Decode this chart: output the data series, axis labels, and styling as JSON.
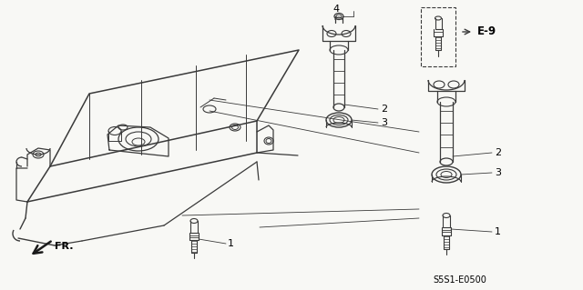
{
  "bg_color": "#f5f5f0",
  "line_color": "#3a3a3a",
  "label_color": "#000000",
  "diagram_code": "S5S1-E0500",
  "e9_label": "E-9",
  "fr_label": "FR."
}
